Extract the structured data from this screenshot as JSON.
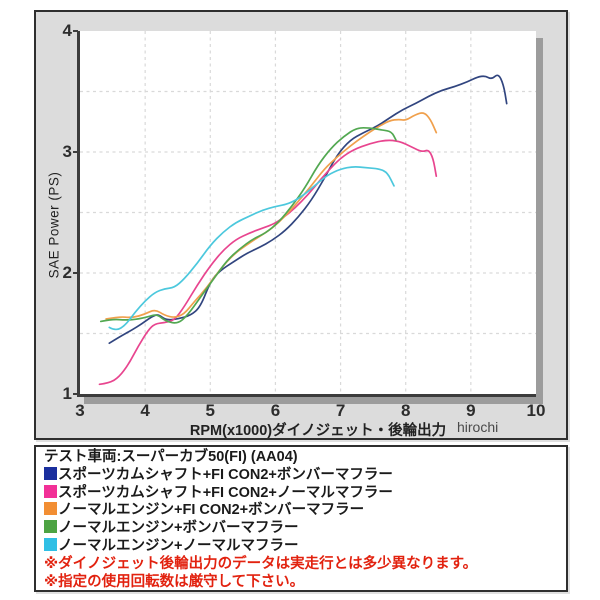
{
  "watermark": "hirochi",
  "chart_data": {
    "type": "line",
    "title": "",
    "xlabel": "RPM(x1000)ダイノジェット・後輪出力",
    "ylabel": "SAE Power (PS)",
    "xlim": [
      3,
      10
    ],
    "ylim": [
      1,
      4
    ],
    "grid": "dashed",
    "grid_color": "#d9d9d9",
    "x_tick_values": [
      3,
      4,
      5,
      6,
      7,
      8,
      9,
      10
    ],
    "y_tick_values": [
      1,
      2,
      3,
      4
    ],
    "x_gridlines": [
      4,
      5,
      6,
      7,
      8,
      9
    ],
    "y_gridlines": [
      1.5,
      2,
      2.5,
      3,
      3.5
    ],
    "legend_position": "below",
    "series": [
      {
        "name": "スポーツカムシャフト+FI CON2+ボンバーマフラー",
        "color": "#31457f",
        "points": [
          [
            3.45,
            1.42
          ],
          [
            3.6,
            1.47
          ],
          [
            3.8,
            1.53
          ],
          [
            3.95,
            1.58
          ],
          [
            4.1,
            1.64
          ],
          [
            4.2,
            1.66
          ],
          [
            4.32,
            1.61
          ],
          [
            4.5,
            1.62
          ],
          [
            4.7,
            1.65
          ],
          [
            4.85,
            1.72
          ],
          [
            5.0,
            1.93
          ],
          [
            5.15,
            2.02
          ],
          [
            5.35,
            2.09
          ],
          [
            5.55,
            2.16
          ],
          [
            5.75,
            2.21
          ],
          [
            5.95,
            2.27
          ],
          [
            6.15,
            2.35
          ],
          [
            6.35,
            2.46
          ],
          [
            6.55,
            2.6
          ],
          [
            6.75,
            2.78
          ],
          [
            6.95,
            2.98
          ],
          [
            7.15,
            3.1
          ],
          [
            7.35,
            3.16
          ],
          [
            7.55,
            3.21
          ],
          [
            7.75,
            3.28
          ],
          [
            7.95,
            3.35
          ],
          [
            8.15,
            3.4
          ],
          [
            8.35,
            3.46
          ],
          [
            8.55,
            3.51
          ],
          [
            8.75,
            3.54
          ],
          [
            8.95,
            3.58
          ],
          [
            9.1,
            3.62
          ],
          [
            9.22,
            3.63
          ],
          [
            9.32,
            3.6
          ],
          [
            9.42,
            3.65
          ],
          [
            9.5,
            3.56
          ],
          [
            9.55,
            3.4
          ]
        ]
      },
      {
        "name": "スポーツカムシャフト+FI CON2+ノーマルマフラー",
        "color": "#e8458f",
        "points": [
          [
            3.3,
            1.08
          ],
          [
            3.45,
            1.09
          ],
          [
            3.6,
            1.14
          ],
          [
            3.75,
            1.25
          ],
          [
            3.9,
            1.4
          ],
          [
            4.05,
            1.53
          ],
          [
            4.15,
            1.58
          ],
          [
            4.3,
            1.59
          ],
          [
            4.45,
            1.61
          ],
          [
            4.6,
            1.72
          ],
          [
            4.8,
            1.9
          ],
          [
            5.0,
            2.06
          ],
          [
            5.2,
            2.19
          ],
          [
            5.4,
            2.28
          ],
          [
            5.6,
            2.33
          ],
          [
            5.8,
            2.37
          ],
          [
            6.0,
            2.41
          ],
          [
            6.2,
            2.49
          ],
          [
            6.4,
            2.59
          ],
          [
            6.6,
            2.71
          ],
          [
            6.8,
            2.84
          ],
          [
            7.0,
            2.95
          ],
          [
            7.2,
            3.02
          ],
          [
            7.45,
            3.07
          ],
          [
            7.7,
            3.1
          ],
          [
            7.9,
            3.09
          ],
          [
            8.1,
            3.04
          ],
          [
            8.25,
            3.0
          ],
          [
            8.35,
            3.02
          ],
          [
            8.42,
            2.95
          ],
          [
            8.47,
            2.8
          ]
        ]
      },
      {
        "name": "ノーマルエンジン+FI CON2+ボンバーマフラー",
        "color": "#f0a04c",
        "points": [
          [
            3.4,
            1.62
          ],
          [
            3.6,
            1.64
          ],
          [
            3.8,
            1.63
          ],
          [
            4.0,
            1.66
          ],
          [
            4.15,
            1.7
          ],
          [
            4.3,
            1.65
          ],
          [
            4.45,
            1.63
          ],
          [
            4.6,
            1.66
          ],
          [
            4.75,
            1.76
          ],
          [
            4.95,
            1.88
          ],
          [
            5.15,
            2.03
          ],
          [
            5.35,
            2.15
          ],
          [
            5.55,
            2.23
          ],
          [
            5.75,
            2.3
          ],
          [
            5.95,
            2.37
          ],
          [
            6.15,
            2.47
          ],
          [
            6.35,
            2.59
          ],
          [
            6.55,
            2.72
          ],
          [
            6.75,
            2.86
          ],
          [
            6.95,
            2.96
          ],
          [
            7.15,
            3.05
          ],
          [
            7.35,
            3.13
          ],
          [
            7.55,
            3.2
          ],
          [
            7.75,
            3.26
          ],
          [
            7.9,
            3.27
          ],
          [
            8.0,
            3.26
          ],
          [
            8.15,
            3.31
          ],
          [
            8.28,
            3.33
          ],
          [
            8.38,
            3.27
          ],
          [
            8.47,
            3.16
          ]
        ]
      },
      {
        "name": "ノーマルエンジン+ボンバーマフラー",
        "color": "#52a851",
        "points": [
          [
            3.32,
            1.6
          ],
          [
            3.5,
            1.62
          ],
          [
            3.7,
            1.61
          ],
          [
            3.9,
            1.62
          ],
          [
            4.05,
            1.64
          ],
          [
            4.18,
            1.66
          ],
          [
            4.32,
            1.6
          ],
          [
            4.5,
            1.58
          ],
          [
            4.65,
            1.65
          ],
          [
            4.85,
            1.8
          ],
          [
            5.05,
            1.95
          ],
          [
            5.25,
            2.1
          ],
          [
            5.45,
            2.2
          ],
          [
            5.65,
            2.28
          ],
          [
            5.85,
            2.33
          ],
          [
            6.05,
            2.42
          ],
          [
            6.25,
            2.55
          ],
          [
            6.45,
            2.7
          ],
          [
            6.65,
            2.89
          ],
          [
            6.85,
            3.03
          ],
          [
            7.05,
            3.13
          ],
          [
            7.25,
            3.2
          ],
          [
            7.45,
            3.2
          ],
          [
            7.65,
            3.18
          ],
          [
            7.78,
            3.17
          ],
          [
            7.85,
            3.1
          ]
        ]
      },
      {
        "name": "ノーマルエンジン+ノーマルマフラー",
        "color": "#4cc8dd",
        "points": [
          [
            3.45,
            1.55
          ],
          [
            3.55,
            1.52
          ],
          [
            3.7,
            1.57
          ],
          [
            3.85,
            1.68
          ],
          [
            4.0,
            1.77
          ],
          [
            4.15,
            1.84
          ],
          [
            4.3,
            1.87
          ],
          [
            4.45,
            1.88
          ],
          [
            4.6,
            1.95
          ],
          [
            4.8,
            2.08
          ],
          [
            5.0,
            2.23
          ],
          [
            5.2,
            2.34
          ],
          [
            5.4,
            2.42
          ],
          [
            5.6,
            2.47
          ],
          [
            5.8,
            2.52
          ],
          [
            6.0,
            2.55
          ],
          [
            6.2,
            2.57
          ],
          [
            6.4,
            2.63
          ],
          [
            6.6,
            2.72
          ],
          [
            6.8,
            2.81
          ],
          [
            7.0,
            2.86
          ],
          [
            7.2,
            2.88
          ],
          [
            7.4,
            2.87
          ],
          [
            7.6,
            2.86
          ],
          [
            7.72,
            2.83
          ],
          [
            7.82,
            2.72
          ]
        ]
      }
    ]
  },
  "legend": {
    "title": "テスト車両:スーパーカブ50(FI) (AA04)",
    "items": [
      {
        "label": "スポーツカムシャフト+FI CON2+ボンバーマフラー",
        "color": "#1a2f9e"
      },
      {
        "label": "スポーツカムシャフト+FI CON2+ノーマルマフラー",
        "color": "#f23097"
      },
      {
        "label": "ノーマルエンジン+FI CON2+ボンバーマフラー",
        "color": "#f28e33"
      },
      {
        "label": "ノーマルエンジン+ボンバーマフラー",
        "color": "#4da343"
      },
      {
        "label": "ノーマルエンジン+ノーマルマフラー",
        "color": "#30bfe5"
      }
    ],
    "notes": [
      "※ダイノジェット後輪出力のデータは実走行とは多少異なります。",
      "※指定の使用回転数は厳守して下さい。"
    ],
    "note_color": "#e2220f"
  }
}
